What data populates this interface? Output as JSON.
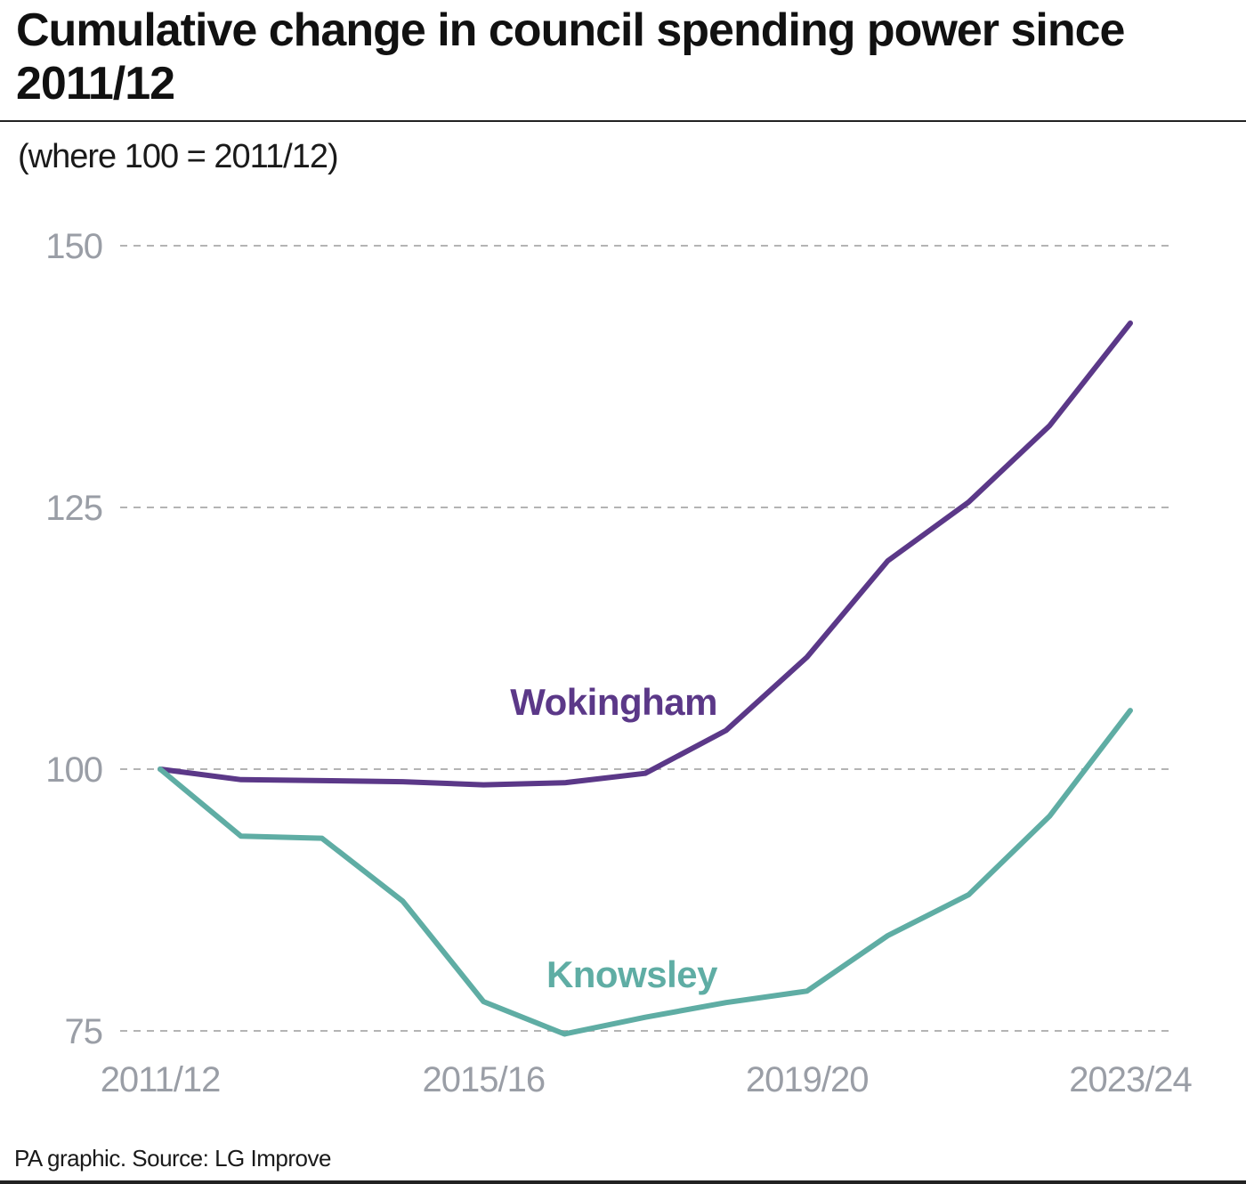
{
  "header": {
    "title": "Cumulative change in council spending power since 2011/12",
    "subtitle": "(where 100 = 2011/12)"
  },
  "footer": {
    "source": "PA graphic. Source: LG Improve"
  },
  "colors": {
    "wokingham": "#5b3888",
    "knowsley": "#5fada4",
    "axis_text": "#9a9ea6",
    "grid": "#b4b4b4"
  },
  "chart_data": {
    "type": "line",
    "x": [
      "2011/12",
      "2012/13",
      "2013/14",
      "2014/15",
      "2015/16",
      "2016/17",
      "2017/18",
      "2018/19",
      "2019/20",
      "2020/21",
      "2021/22",
      "2022/23",
      "2023/24"
    ],
    "x_tick_labels": [
      "2011/12",
      "2015/16",
      "2019/20",
      "2023/24"
    ],
    "y_ticks": [
      75,
      100,
      125,
      150
    ],
    "ylim": [
      75,
      150
    ],
    "grid": true,
    "series": [
      {
        "name": "Wokingham",
        "color": "#5b3888",
        "values": [
          100,
          99,
          98.9,
          98.8,
          98.5,
          98.7,
          99.6,
          103.7,
          110.7,
          119.9,
          125.5,
          132.8,
          142.6
        ]
      },
      {
        "name": "Knowsley",
        "color": "#5fada4",
        "values": [
          100,
          93.6,
          93.4,
          87.4,
          77.8,
          74.7,
          76.3,
          77.7,
          78.8,
          84.1,
          88.0,
          95.5,
          105.6
        ]
      }
    ]
  }
}
